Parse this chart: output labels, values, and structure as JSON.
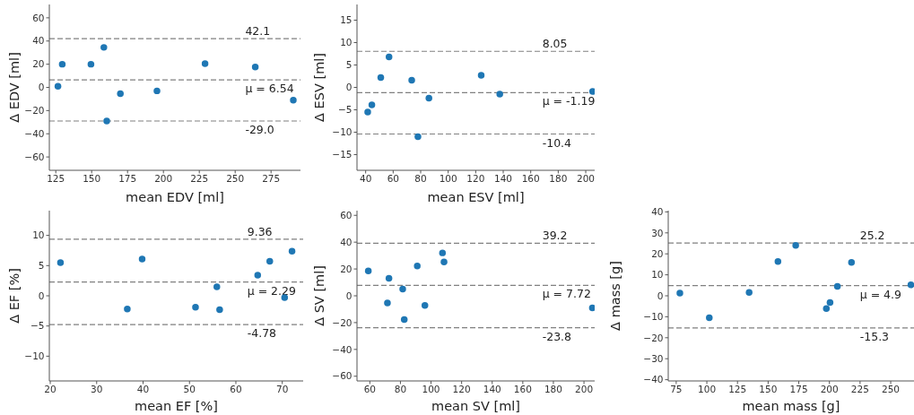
{
  "chart_data": [
    {
      "type": "scatter",
      "xlabel": "mean EDV [ml]",
      "ylabel": "Δ EDV [ml]",
      "xlim": [
        120.5,
        295.5
      ],
      "ylim": [
        -71.5,
        71.5
      ],
      "xticks": [
        125,
        150,
        175,
        200,
        225,
        250,
        275
      ],
      "yticks": [
        -60,
        -40,
        -20,
        0,
        20,
        40,
        60
      ],
      "marker": "circle",
      "color": "#1f77b4",
      "x": [
        126.5,
        129.5,
        149.5,
        158.5,
        160.5,
        170,
        195.5,
        229,
        264,
        290.5
      ],
      "values": [
        1,
        20,
        20,
        34.5,
        -29,
        -5.5,
        -3,
        20.5,
        17.5,
        -11
      ],
      "ref_lines": [
        {
          "axis": "y",
          "value": 42.1,
          "label": "42.1",
          "color": "#808080",
          "line_style": "dashed"
        },
        {
          "axis": "y",
          "value": 6.54,
          "label": "μ = 6.54",
          "color": "#808080",
          "line_style": "dashed"
        },
        {
          "axis": "y",
          "value": -29.0,
          "label": "-29.0",
          "color": "#808080",
          "line_style": "dashed"
        }
      ]
    },
    {
      "type": "scatter",
      "xlabel": "mean ESV [ml]",
      "ylabel": "Δ ESV [ml]",
      "xlim": [
        33.7,
        206.5
      ],
      "ylim": [
        -18.5,
        18.5
      ],
      "xticks": [
        40,
        60,
        80,
        100,
        120,
        140,
        160,
        180,
        200
      ],
      "yticks": [
        -15,
        -10,
        -5,
        0,
        5,
        10,
        15
      ],
      "marker": "circle",
      "color": "#1f77b4",
      "x": [
        41.5,
        44.5,
        51,
        57,
        73.5,
        78,
        86,
        124,
        137.5,
        205
      ],
      "values": [
        -5.5,
        -3.9,
        2.2,
        6.8,
        1.6,
        -11,
        -2.4,
        2.7,
        -1.5,
        -0.9
      ],
      "ref_lines": [
        {
          "axis": "y",
          "value": 8.05,
          "label": "8.05",
          "color": "#808080",
          "line_style": "dashed"
        },
        {
          "axis": "y",
          "value": -1.19,
          "label": "μ = -1.19",
          "color": "#808080",
          "line_style": "dashed"
        },
        {
          "axis": "y",
          "value": -10.4,
          "label": "-10.4",
          "color": "#808080",
          "line_style": "dashed"
        }
      ]
    },
    {
      "type": "scatter",
      "xlabel": "mean EF [%]",
      "ylabel": "Δ EF [%]",
      "xlim": [
        19.8,
        74.5
      ],
      "ylim": [
        -14.1,
        14.1
      ],
      "xticks": [
        20,
        30,
        40,
        50,
        60,
        70
      ],
      "yticks": [
        -10,
        -5,
        0,
        5,
        10
      ],
      "marker": "circle",
      "color": "#1f77b4",
      "x": [
        22.2,
        36.6,
        39.8,
        51.3,
        55.9,
        56.5,
        64.7,
        67.3,
        70.5,
        72.1
      ],
      "values": [
        5.5,
        -2.2,
        6.1,
        -1.9,
        1.5,
        -2.3,
        3.4,
        5.7,
        -0.3,
        7.4
      ],
      "ref_lines": [
        {
          "axis": "y",
          "value": 9.36,
          "label": "9.36",
          "color": "#808080",
          "line_style": "dashed"
        },
        {
          "axis": "y",
          "value": 2.29,
          "label": "μ = 2.29",
          "color": "#808080",
          "line_style": "dashed"
        },
        {
          "axis": "y",
          "value": -4.78,
          "label": "-4.78",
          "color": "#808080",
          "line_style": "dashed"
        }
      ]
    },
    {
      "type": "scatter",
      "xlabel": "mean SV [ml]",
      "ylabel": "Δ SV [ml]",
      "xlim": [
        51.6,
        207
      ],
      "ylim": [
        -63.5,
        63.5
      ],
      "xticks": [
        60,
        80,
        100,
        120,
        140,
        160,
        180,
        200
      ],
      "yticks": [
        -60,
        -40,
        -20,
        0,
        20,
        40,
        60
      ],
      "marker": "circle",
      "color": "#1f77b4",
      "x": [
        59,
        71.5,
        72.5,
        81.5,
        82.5,
        91,
        96,
        107.5,
        108.5,
        205.5
      ],
      "values": [
        18.5,
        -5.3,
        13,
        5,
        -17.7,
        22.2,
        -7.2,
        32,
        25.3,
        -9
      ],
      "ref_lines": [
        {
          "axis": "y",
          "value": 39.2,
          "label": "39.2",
          "color": "#808080",
          "line_style": "dashed"
        },
        {
          "axis": "y",
          "value": 7.72,
          "label": "μ = 7.72",
          "color": "#808080",
          "line_style": "dashed"
        },
        {
          "axis": "y",
          "value": -23.8,
          "label": "-23.8",
          "color": "#808080",
          "line_style": "dashed"
        }
      ]
    },
    {
      "type": "scatter",
      "xlabel": "mean mass [g]",
      "ylabel": "Δ mass [g]",
      "xlim": [
        68.5,
        269
      ],
      "ylim": [
        -40.6,
        40.6
      ],
      "xticks": [
        75,
        100,
        125,
        150,
        175,
        200,
        225,
        250
      ],
      "yticks": [
        -40,
        -30,
        -20,
        -10,
        0,
        10,
        20,
        30,
        40
      ],
      "marker": "circle",
      "color": "#1f77b4",
      "x": [
        78,
        102,
        134.5,
        158,
        172.5,
        197.5,
        200.5,
        206.5,
        218,
        266.5
      ],
      "values": [
        1.3,
        -10.5,
        1.6,
        16.3,
        24,
        -6.1,
        -3.2,
        4.5,
        15.9,
        5.2
      ],
      "ref_lines": [
        {
          "axis": "y",
          "value": 25.2,
          "label": "25.2",
          "color": "#808080",
          "line_style": "dashed"
        },
        {
          "axis": "y",
          "value": 4.9,
          "label": "μ = 4.9",
          "color": "#808080",
          "line_style": "dashed"
        },
        {
          "axis": "y",
          "value": -15.3,
          "label": "-15.3",
          "color": "#808080",
          "line_style": "dashed"
        }
      ]
    }
  ]
}
